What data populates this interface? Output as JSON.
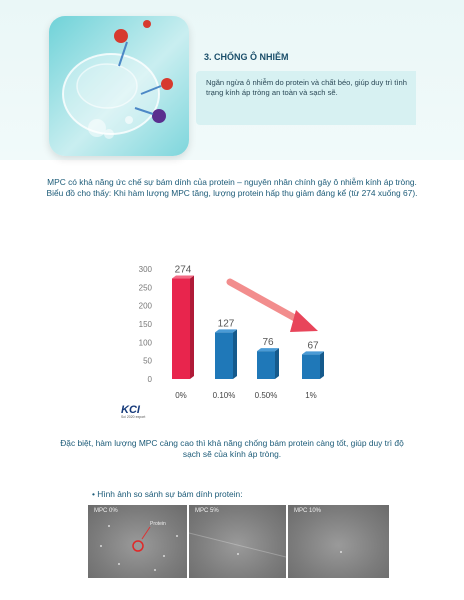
{
  "header": {
    "title": "3. CHỐNG Ô NHIỄM",
    "description": "Ngăn ngừa ô nhiễm do protein và chất béo, giúp duy trì tình trạng kính áp tròng an toàn và sạch sẽ."
  },
  "intro": {
    "line1": "MPC có khả năng ức chế sự bám dính của protein – nguyên nhân chính gây ô nhiễm kính áp tròng.",
    "line2": "Biểu đồ cho thấy: Khi hàm lượng MPC tăng, lượng protein hấp thụ giảm đáng kể (từ 274 xuống 67)."
  },
  "chart_data": {
    "type": "bar",
    "title": "",
    "xlabel": "",
    "ylabel": "",
    "categories": [
      "0%",
      "0.10%",
      "0.50%",
      "1%"
    ],
    "values": [
      274,
      127,
      76,
      67
    ],
    "ylim": [
      0,
      300
    ],
    "yticks": [
      "0",
      "50",
      "100",
      "150",
      "200",
      "250",
      "300"
    ],
    "grid": false,
    "colors": [
      "#e8254d",
      "#1f78b8",
      "#1f78b8",
      "#1f78b8"
    ],
    "annotation": "downward trend arrow"
  },
  "logo": {
    "main": "KCI",
    "sub": "Sci 2020 export"
  },
  "note": {
    "text": "Đặc biệt, hàm lượng MPC càng cao thì khả năng chống bám protein càng tốt, giúp duy trì độ sạch sẽ của kính áp tròng."
  },
  "comparison": {
    "title": "• Hình ảnh so sánh sự bám dính protein:",
    "panels": [
      {
        "label": "MPC 0%",
        "callout": "Protein"
      },
      {
        "label": "MPC 5%"
      },
      {
        "label": "MPC 10%"
      }
    ]
  }
}
